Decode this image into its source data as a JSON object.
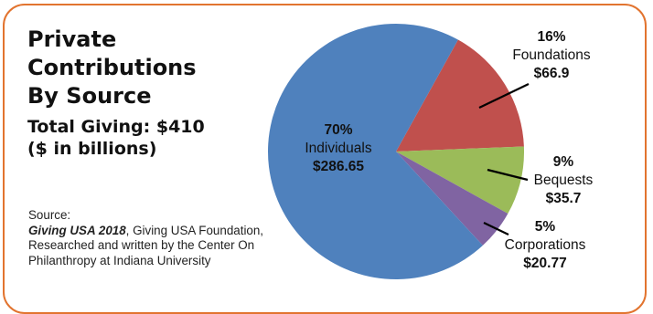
{
  "title_lines": [
    "Private",
    "Contributions",
    "By Source"
  ],
  "subtitle_lines": [
    "Total Giving: $410",
    "($ in billions)"
  ],
  "source": {
    "label": "Source:",
    "publication": "Giving USA 2018",
    "text": ", Giving USA Foundation, Researched and written by the Center On Philanthropy at Indiana University"
  },
  "chart_data": {
    "type": "pie",
    "title": "Private Contributions By Source",
    "total": 410,
    "unit": "$ in billions",
    "slices": [
      {
        "name": "Individuals",
        "percent_label": "70%",
        "value_label": "$286.65",
        "value": 286.65,
        "color": "#4f81bd"
      },
      {
        "name": "Foundations",
        "percent_label": "16%",
        "value_label": "$66.9",
        "value": 66.9,
        "color": "#c0504d"
      },
      {
        "name": "Bequests",
        "percent_label": "9%",
        "value_label": "$35.7",
        "value": 35.7,
        "color": "#9bbb59"
      },
      {
        "name": "Corporations",
        "percent_label": "5%",
        "value_label": "$20.77",
        "value": 20.77,
        "color": "#8064a2"
      }
    ]
  }
}
